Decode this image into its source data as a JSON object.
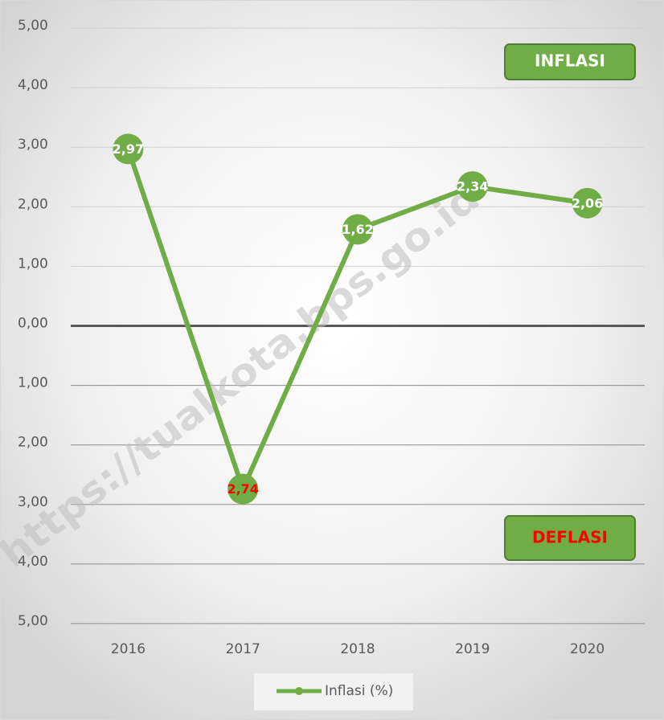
{
  "chart_data": {
    "type": "line",
    "categories": [
      "2016",
      "2017",
      "2018",
      "2019",
      "2020"
    ],
    "series": [
      {
        "name": "Inflasi (%)",
        "color": "#70ad47",
        "values": [
          2.97,
          -2.74,
          1.62,
          2.34,
          2.06
        ],
        "value_labels": [
          "2,97",
          "2,74",
          "1,62",
          "2,34",
          "2,06"
        ],
        "value_label_colors": [
          "#ffffff",
          "#ff0000",
          "#ffffff",
          "#ffffff",
          "#ffffff"
        ]
      }
    ],
    "ylim": [
      -5,
      5
    ],
    "yticks": [
      {
        "value": 5,
        "label": "5,00"
      },
      {
        "value": 4,
        "label": "4,00"
      },
      {
        "value": 3,
        "label": "3,00"
      },
      {
        "value": 2,
        "label": "2,00"
      },
      {
        "value": 1,
        "label": "1,00"
      },
      {
        "value": 0,
        "label": "0,00"
      },
      {
        "value": -1,
        "label": "1,00"
      },
      {
        "value": -2,
        "label": "2,00"
      },
      {
        "value": -3,
        "label": "3,00"
      },
      {
        "value": -4,
        "label": "4,00"
      },
      {
        "value": -5,
        "label": "5,00"
      }
    ],
    "grid": true,
    "legend": "bottom",
    "annotations": [
      "INFLASI",
      "DEFLASI"
    ],
    "watermark": "https://tualkota.bps.go.id"
  }
}
